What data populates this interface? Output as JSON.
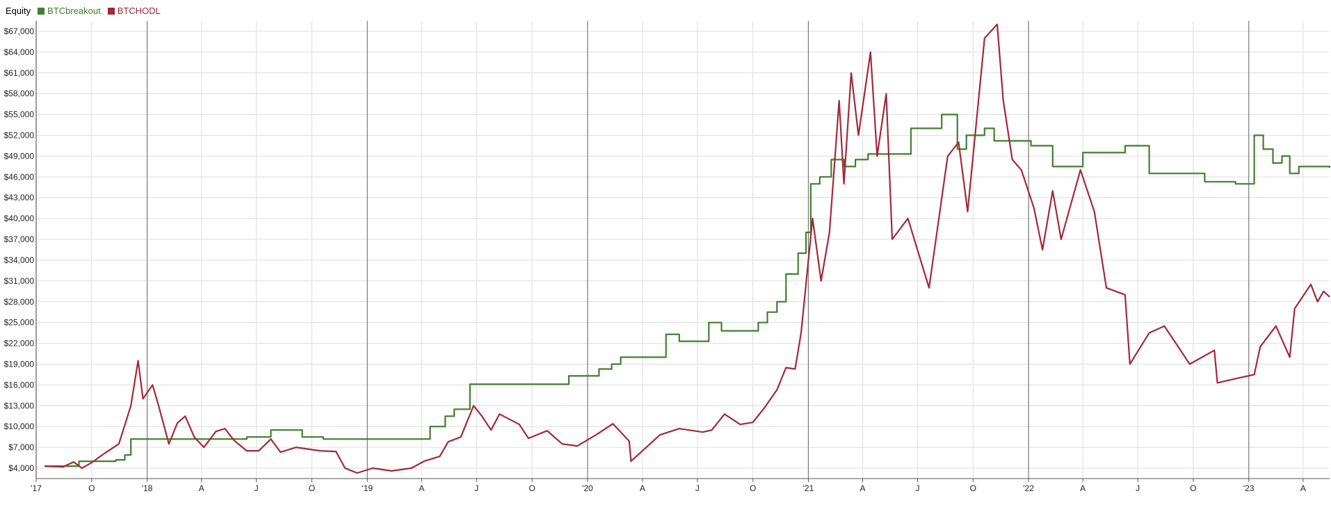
{
  "chart_data": {
    "type": "line",
    "legend": {
      "title": "Equity",
      "position": "top-left"
    },
    "colors": {
      "BTCbreakout": "#3f7f2f",
      "BTCHODL": "#a3283a"
    },
    "y_axis": {
      "min": 2500,
      "max": 68500,
      "ticks": [
        {
          "value": 4000,
          "label": "$4,000"
        },
        {
          "value": 7000,
          "label": "$7,000"
        },
        {
          "value": 10000,
          "label": "$10,000"
        },
        {
          "value": 13000,
          "label": "$13,000"
        },
        {
          "value": 16000,
          "label": "$16,000"
        },
        {
          "value": 19000,
          "label": "$19,000"
        },
        {
          "value": 22000,
          "label": "$22,000"
        },
        {
          "value": 25000,
          "label": "$25,000"
        },
        {
          "value": 28000,
          "label": "$28,000"
        },
        {
          "value": 31000,
          "label": "$31,000"
        },
        {
          "value": 34000,
          "label": "$34,000"
        },
        {
          "value": 37000,
          "label": "$37,000"
        },
        {
          "value": 40000,
          "label": "$40,000"
        },
        {
          "value": 43000,
          "label": "$43,000"
        },
        {
          "value": 46000,
          "label": "$46,000"
        },
        {
          "value": 49000,
          "label": "$49,000"
        },
        {
          "value": 52000,
          "label": "$52,000"
        },
        {
          "value": 55000,
          "label": "$55,000"
        },
        {
          "value": 58000,
          "label": "$58,000"
        },
        {
          "value": 61000,
          "label": "$61,000"
        },
        {
          "value": 64000,
          "label": "$64,000"
        },
        {
          "value": 67000,
          "label": "$67,000"
        }
      ]
    },
    "x_axis": {
      "min": "2017-07-01",
      "max": "2023-05-15",
      "ticks": [
        {
          "date": "2017-07-01",
          "label": "'17",
          "year": true
        },
        {
          "date": "2017-10-01",
          "label": "O",
          "year": false
        },
        {
          "date": "2018-01-01",
          "label": "'18",
          "year": true
        },
        {
          "date": "2018-04-01",
          "label": "A",
          "year": false
        },
        {
          "date": "2018-07-01",
          "label": "J",
          "year": false
        },
        {
          "date": "2018-10-01",
          "label": "O",
          "year": false
        },
        {
          "date": "2019-01-01",
          "label": "'19",
          "year": true
        },
        {
          "date": "2019-04-01",
          "label": "A",
          "year": false
        },
        {
          "date": "2019-07-01",
          "label": "J",
          "year": false
        },
        {
          "date": "2019-10-01",
          "label": "O",
          "year": false
        },
        {
          "date": "2020-01-01",
          "label": "'20",
          "year": true
        },
        {
          "date": "2020-04-01",
          "label": "A",
          "year": false
        },
        {
          "date": "2020-07-01",
          "label": "J",
          "year": false
        },
        {
          "date": "2020-10-01",
          "label": "O",
          "year": false
        },
        {
          "date": "2021-01-01",
          "label": "'21",
          "year": true
        },
        {
          "date": "2021-04-01",
          "label": "A",
          "year": false
        },
        {
          "date": "2021-07-01",
          "label": "J",
          "year": false
        },
        {
          "date": "2021-10-01",
          "label": "O",
          "year": false
        },
        {
          "date": "2022-01-01",
          "label": "'22",
          "year": true
        },
        {
          "date": "2022-04-01",
          "label": "A",
          "year": false
        },
        {
          "date": "2022-07-01",
          "label": "J",
          "year": false
        },
        {
          "date": "2022-10-01",
          "label": "O",
          "year": false
        },
        {
          "date": "2023-01-01",
          "label": "'23",
          "year": true
        },
        {
          "date": "2023-04-01",
          "label": "A",
          "year": false
        }
      ]
    },
    "grid": true,
    "series": [
      {
        "name": "BTCbreakout",
        "step": true,
        "points": [
          [
            "2017-07-15",
            4300
          ],
          [
            "2017-09-10",
            5000
          ],
          [
            "2017-11-10",
            5200
          ],
          [
            "2017-11-25",
            5900
          ],
          [
            "2017-12-05",
            8200
          ],
          [
            "2018-06-15",
            8500
          ],
          [
            "2018-07-25",
            9500
          ],
          [
            "2018-09-15",
            8500
          ],
          [
            "2018-10-20",
            8200
          ],
          [
            "2019-04-15",
            10000
          ],
          [
            "2019-05-10",
            11500
          ],
          [
            "2019-05-25",
            12500
          ],
          [
            "2019-06-20",
            16100
          ],
          [
            "2019-12-01",
            17300
          ],
          [
            "2020-01-20",
            18300
          ],
          [
            "2020-02-10",
            19000
          ],
          [
            "2020-02-25",
            20000
          ],
          [
            "2020-05-10",
            23300
          ],
          [
            "2020-06-01",
            22300
          ],
          [
            "2020-07-20",
            25000
          ],
          [
            "2020-08-10",
            23800
          ],
          [
            "2020-10-10",
            25000
          ],
          [
            "2020-10-25",
            26500
          ],
          [
            "2020-11-10",
            28000
          ],
          [
            "2020-11-25",
            32000
          ],
          [
            "2020-12-15",
            35000
          ],
          [
            "2020-12-28",
            38000
          ],
          [
            "2021-01-05",
            45000
          ],
          [
            "2021-01-20",
            46000
          ],
          [
            "2021-02-08",
            48500
          ],
          [
            "2021-03-01",
            47500
          ],
          [
            "2021-03-20",
            48500
          ],
          [
            "2021-04-10",
            49300
          ],
          [
            "2021-06-20",
            53000
          ],
          [
            "2021-08-10",
            55000
          ],
          [
            "2021-09-05",
            50000
          ],
          [
            "2021-09-20",
            52000
          ],
          [
            "2021-10-20",
            53000
          ],
          [
            "2021-11-05",
            51200
          ],
          [
            "2022-01-05",
            50500
          ],
          [
            "2022-02-10",
            47500
          ],
          [
            "2022-04-01",
            49500
          ],
          [
            "2022-06-10",
            50500
          ],
          [
            "2022-07-20",
            46500
          ],
          [
            "2022-09-10",
            46500
          ],
          [
            "2022-10-20",
            45300
          ],
          [
            "2022-12-10",
            45000
          ],
          [
            "2023-01-10",
            52000
          ],
          [
            "2023-01-25",
            50000
          ],
          [
            "2023-02-10",
            48000
          ],
          [
            "2023-02-25",
            49000
          ],
          [
            "2023-03-10",
            46500
          ],
          [
            "2023-03-25",
            47500
          ],
          [
            "2023-05-15",
            47300
          ]
        ]
      },
      {
        "name": "BTCHODL",
        "step": false,
        "points": [
          [
            "2017-07-15",
            4300
          ],
          [
            "2017-08-15",
            4200
          ],
          [
            "2017-09-01",
            4900
          ],
          [
            "2017-09-15",
            4000
          ],
          [
            "2017-10-01",
            4800
          ],
          [
            "2017-10-20",
            6000
          ],
          [
            "2017-11-15",
            7500
          ],
          [
            "2017-12-05",
            13000
          ],
          [
            "2017-12-17",
            19500
          ],
          [
            "2017-12-25",
            14000
          ],
          [
            "2018-01-10",
            16000
          ],
          [
            "2018-01-20",
            13000
          ],
          [
            "2018-02-06",
            7500
          ],
          [
            "2018-02-20",
            10500
          ],
          [
            "2018-03-05",
            11500
          ],
          [
            "2018-03-20",
            8500
          ],
          [
            "2018-04-05",
            7000
          ],
          [
            "2018-04-25",
            9300
          ],
          [
            "2018-05-10",
            9700
          ],
          [
            "2018-05-25",
            8000
          ],
          [
            "2018-06-15",
            6500
          ],
          [
            "2018-07-05",
            6500
          ],
          [
            "2018-07-25",
            8200
          ],
          [
            "2018-08-10",
            6300
          ],
          [
            "2018-09-05",
            7000
          ],
          [
            "2018-10-15",
            6500
          ],
          [
            "2018-11-10",
            6400
          ],
          [
            "2018-11-25",
            4000
          ],
          [
            "2018-12-15",
            3300
          ],
          [
            "2019-01-10",
            4000
          ],
          [
            "2019-02-10",
            3600
          ],
          [
            "2019-03-15",
            4000
          ],
          [
            "2019-04-05",
            5000
          ],
          [
            "2019-05-01",
            5700
          ],
          [
            "2019-05-15",
            7800
          ],
          [
            "2019-06-05",
            8500
          ],
          [
            "2019-06-26",
            13000
          ],
          [
            "2019-07-10",
            11500
          ],
          [
            "2019-07-25",
            9500
          ],
          [
            "2019-08-08",
            11800
          ],
          [
            "2019-09-10",
            10300
          ],
          [
            "2019-09-25",
            8300
          ],
          [
            "2019-10-26",
            9400
          ],
          [
            "2019-11-20",
            7500
          ],
          [
            "2019-12-15",
            7200
          ],
          [
            "2020-01-15",
            8800
          ],
          [
            "2020-02-12",
            10400
          ],
          [
            "2020-03-10",
            7900
          ],
          [
            "2020-03-13",
            5000
          ],
          [
            "2020-04-01",
            6500
          ],
          [
            "2020-04-30",
            8800
          ],
          [
            "2020-06-01",
            9700
          ],
          [
            "2020-07-10",
            9200
          ],
          [
            "2020-07-25",
            9500
          ],
          [
            "2020-08-15",
            11800
          ],
          [
            "2020-09-10",
            10300
          ],
          [
            "2020-10-01",
            10600
          ],
          [
            "2020-10-21",
            12800
          ],
          [
            "2020-11-10",
            15300
          ],
          [
            "2020-11-25",
            18500
          ],
          [
            "2020-12-10",
            18300
          ],
          [
            "2020-12-20",
            23500
          ],
          [
            "2021-01-08",
            40000
          ],
          [
            "2021-01-22",
            31000
          ],
          [
            "2021-02-05",
            38000
          ],
          [
            "2021-02-21",
            57000
          ],
          [
            "2021-03-01",
            45000
          ],
          [
            "2021-03-13",
            61000
          ],
          [
            "2021-03-25",
            52000
          ],
          [
            "2021-04-14",
            64000
          ],
          [
            "2021-04-25",
            49000
          ],
          [
            "2021-05-10",
            58000
          ],
          [
            "2021-05-20",
            37000
          ],
          [
            "2021-06-15",
            40000
          ],
          [
            "2021-07-20",
            30000
          ],
          [
            "2021-08-20",
            49000
          ],
          [
            "2021-09-07",
            51000
          ],
          [
            "2021-09-22",
            41000
          ],
          [
            "2021-10-20",
            66000
          ],
          [
            "2021-11-10",
            68000
          ],
          [
            "2021-11-20",
            57000
          ],
          [
            "2021-12-05",
            48500
          ],
          [
            "2021-12-20",
            47000
          ],
          [
            "2022-01-10",
            41500
          ],
          [
            "2022-01-24",
            35500
          ],
          [
            "2022-02-10",
            44000
          ],
          [
            "2022-02-24",
            37000
          ],
          [
            "2022-03-28",
            47000
          ],
          [
            "2022-04-20",
            41000
          ],
          [
            "2022-05-10",
            30000
          ],
          [
            "2022-06-10",
            29000
          ],
          [
            "2022-06-18",
            19000
          ],
          [
            "2022-07-20",
            23500
          ],
          [
            "2022-08-14",
            24500
          ],
          [
            "2022-09-10",
            21000
          ],
          [
            "2022-09-25",
            19000
          ],
          [
            "2022-11-05",
            21000
          ],
          [
            "2022-11-10",
            16300
          ],
          [
            "2022-12-15",
            17000
          ],
          [
            "2023-01-10",
            17500
          ],
          [
            "2023-01-20",
            21500
          ],
          [
            "2023-02-15",
            24500
          ],
          [
            "2023-03-10",
            20000
          ],
          [
            "2023-03-18",
            27000
          ],
          [
            "2023-04-14",
            30500
          ],
          [
            "2023-04-25",
            28000
          ],
          [
            "2023-05-05",
            29500
          ],
          [
            "2023-05-15",
            28700
          ]
        ]
      }
    ]
  }
}
